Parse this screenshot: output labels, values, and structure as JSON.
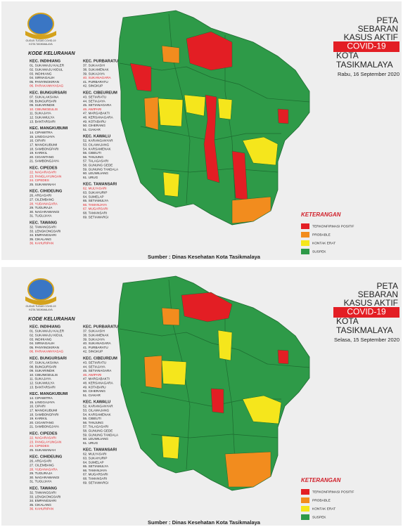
{
  "logo_text": [
    "GUGUS TUGAS COVID-19",
    "KOTA TASIKMALAYA"
  ],
  "list_title": "KODE KELURAHAN",
  "districts": [
    {
      "name": "KEC. INDIHIANG",
      "items": [
        "01. SUKAMAJU KALER",
        "02. SUKAMAJU KIDUL",
        "03. INDIHIANG",
        "04. SIRNAGALIH",
        "05. PANYINGKIRAN",
        "06. PARAKANNYASAG"
      ]
    },
    {
      "name": "KEC. BUNGURSARI",
      "items": [
        "07. SUKALAKSANA",
        "08. BUNGURSARI",
        "09. SUKARINDIK",
        "10. CIBUNIGEULIS",
        "11. SUKAJAYA",
        "12. SUKAMULYA",
        "13. BANTARSARI"
      ]
    },
    {
      "name": "KEC. MANGKUBUMI",
      "items": [
        "14. CIPAWITRA",
        "15. LINGGAJAYA",
        "16. CIPARI",
        "17. MANGKUBUMI",
        "18. SAMBONGPARI",
        "19. KARIKIL",
        "20. CIGANTANG",
        "21. SAMBONGJAYA"
      ]
    },
    {
      "name": "KEC. CIPEDES",
      "items": [
        "22. NAGARASARI",
        "23. PANGLAYUNGAN",
        "24. CIPEDES",
        "25. SUKAMANAH"
      ]
    },
    {
      "name": "KEC. CIHIDEUNG",
      "items": [
        "26. ARGASARI",
        "27. CILEMBANG",
        "28. YUDANAGARA",
        "29. TUGURAJA",
        "30. NAGARAWANGI",
        "31. TUGUJAYA"
      ]
    },
    {
      "name": "KEC. TAWANG",
      "items": [
        "32. TAWANGSARI",
        "33. LENGKONGSARI",
        "34. EMPANGSARI",
        "35. CIKALANG",
        "36. KAHURIPAN"
      ]
    },
    {
      "name": "KEC. PURBARATU",
      "items": [
        "37. SUKAASIH",
        "38. SUKAMENAK",
        "39. SUKAJAYA",
        "40. SUKANAGARA",
        "41. PURBARATU",
        "42. SINGKUP"
      ]
    },
    {
      "name": "KEC. CIBEUREUM",
      "items": [
        "43. SETIARATU",
        "44. SETIAJAYA",
        "45. SETIANAGARA",
        "46. AWIPARI",
        "47. MARGABAKTI",
        "48. KERSANAGARA",
        "49. KOTABARU",
        "50. CIHERANG",
        "51. CIAKAR"
      ]
    },
    {
      "name": "KEC. KAWALU",
      "items": [
        "52. KARANGANYAR",
        "53. CILAMAJANG",
        "54. KARSAMENAK",
        "55. CIBEUTI",
        "56. TANJUNG",
        "57. TALAGASARI",
        "58. GUNUNG GEDE",
        "59. GUNUNG TANDALA",
        "60. LEUWILIANG",
        "61. URUG"
      ]
    },
    {
      "name": "KEC. TAMANSARI",
      "items": [
        "62. MULYASARI",
        "63. SUKAHURIP",
        "64. SUMELAP",
        "65. SETIAMULYA",
        "66. TAMANJAYA",
        "67. MUGARSARI",
        "68. TAMANSARI",
        "69. SETIAWARGI"
      ]
    }
  ],
  "title_lines": [
    "PETA",
    "SEBARAN",
    "KASUS AKTIF"
  ],
  "title_highlight": "COVID-19",
  "subtitle_lines": [
    "KOTA",
    "TASIKMALAYA"
  ],
  "legend": {
    "title": "KETERANGAN",
    "items": [
      {
        "label": "TERKONFIRMASI POSITIF",
        "color": "#e31e24"
      },
      {
        "label": "PROBABLE",
        "color": "#f28c1e"
      },
      {
        "label": "KONTAK ERAT",
        "color": "#f5e61c"
      },
      {
        "label": "SUSPEK",
        "color": "#2e9a48"
      }
    ]
  },
  "source": "Sumber : Dinas Kesehatan Kota Tasikmalaya",
  "panels": [
    {
      "date": "Rabu, 16 September 2020",
      "list_colors": [
        [
          "#1a1a1a",
          "#1a1a1a",
          "#1a1a1a",
          "#1a1a1a",
          "#1a1a1a",
          "#e31e24"
        ],
        [
          "#1a1a1a",
          "#1a1a1a",
          "#1a1a1a",
          "#e31e24",
          "#1a1a1a",
          "#1a1a1a",
          "#1a1a1a"
        ],
        [
          "#1a1a1a",
          "#1a1a1a",
          "#1a1a1a",
          "#1a1a1a",
          "#1a1a1a",
          "#1a1a1a",
          "#1a1a1a",
          "#1a1a1a"
        ],
        [
          "#e31e24",
          "#e31e24",
          "#e31e24",
          "#1a1a1a"
        ],
        [
          "#1a1a1a",
          "#1a1a1a",
          "#e31e24",
          "#1a1a1a",
          "#1a1a1a",
          "#1a1a1a"
        ],
        [
          "#1a1a1a",
          "#1a1a1a",
          "#1a1a1a",
          "#1a1a1a",
          "#e31e24"
        ],
        [
          "#1a1a1a",
          "#1a1a1a",
          "#1a1a1a",
          "#e31e24",
          "#1a1a1a",
          "#1a1a1a"
        ],
        [
          "#1a1a1a",
          "#1a1a1a",
          "#1a1a1a",
          "#e31e24",
          "#1a1a1a",
          "#1a1a1a",
          "#1a1a1a",
          "#1a1a1a",
          "#1a1a1a"
        ],
        [
          "#1a1a1a",
          "#1a1a1a",
          "#1a1a1a",
          "#1a1a1a",
          "#1a1a1a",
          "#1a1a1a",
          "#1a1a1a",
          "#1a1a1a",
          "#1a1a1a",
          "#1a1a1a"
        ],
        [
          "#e31e24",
          "#1a1a1a",
          "#1a1a1a",
          "#1a1a1a",
          "#e31e24",
          "#e31e24",
          "#1a1a1a",
          "#1a1a1a"
        ]
      ]
    },
    {
      "date": "Selasa, 15 September 2020",
      "list_colors": [
        [
          "#1a1a1a",
          "#1a1a1a",
          "#1a1a1a",
          "#1a1a1a",
          "#1a1a1a",
          "#e31e24"
        ],
        [
          "#1a1a1a",
          "#1a1a1a",
          "#1a1a1a",
          "#1a1a1a",
          "#1a1a1a",
          "#1a1a1a",
          "#1a1a1a"
        ],
        [
          "#1a1a1a",
          "#1a1a1a",
          "#1a1a1a",
          "#1a1a1a",
          "#1a1a1a",
          "#1a1a1a",
          "#1a1a1a",
          "#1a1a1a"
        ],
        [
          "#e31e24",
          "#e31e24",
          "#e31e24",
          "#1a1a1a"
        ],
        [
          "#1a1a1a",
          "#1a1a1a",
          "#e31e24",
          "#1a1a1a",
          "#1a1a1a",
          "#1a1a1a"
        ],
        [
          "#1a1a1a",
          "#1a1a1a",
          "#1a1a1a",
          "#1a1a1a",
          "#e31e24"
        ],
        [
          "#1a1a1a",
          "#1a1a1a",
          "#1a1a1a",
          "#1a1a1a",
          "#1a1a1a",
          "#1a1a1a"
        ],
        [
          "#1a1a1a",
          "#1a1a1a",
          "#1a1a1a",
          "#e31e24",
          "#1a1a1a",
          "#1a1a1a",
          "#1a1a1a",
          "#1a1a1a",
          "#1a1a1a"
        ],
        [
          "#1a1a1a",
          "#1a1a1a",
          "#1a1a1a",
          "#1a1a1a",
          "#1a1a1a",
          "#1a1a1a",
          "#1a1a1a",
          "#1a1a1a",
          "#1a1a1a",
          "#1a1a1a"
        ],
        [
          "#1a1a1a",
          "#1a1a1a",
          "#1a1a1a",
          "#1a1a1a",
          "#1a1a1a",
          "#1a1a1a",
          "#1a1a1a",
          "#1a1a1a"
        ]
      ]
    }
  ]
}
